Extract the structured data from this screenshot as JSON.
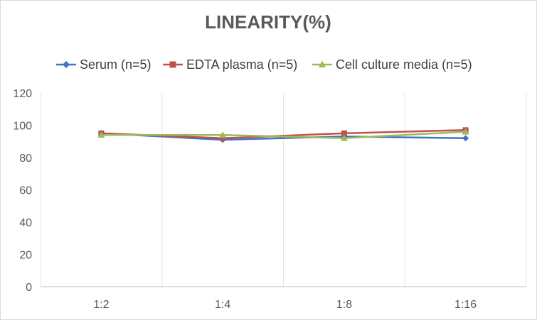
{
  "chart_data": {
    "type": "line",
    "title": "LINEARITY(%)",
    "categories": [
      "1:2",
      "1:4",
      "1:8",
      "1:16"
    ],
    "ylim": [
      0,
      120
    ],
    "yticks": [
      0,
      20,
      40,
      60,
      80,
      100,
      120
    ],
    "grid": "vertical",
    "legend_position": "top",
    "series": [
      {
        "name": "Serum (n=5)",
        "values": [
          95,
          91,
          93,
          92
        ],
        "color": "#4472C4",
        "marker": "diamond"
      },
      {
        "name": "EDTA plasma (n=5)",
        "values": [
          95,
          92,
          95,
          97
        ],
        "color": "#C0504D",
        "marker": "square"
      },
      {
        "name": "Cell culture media (n=5)",
        "values": [
          94,
          94,
          92,
          96
        ],
        "color": "#9BBB59",
        "marker": "triangle"
      }
    ]
  }
}
